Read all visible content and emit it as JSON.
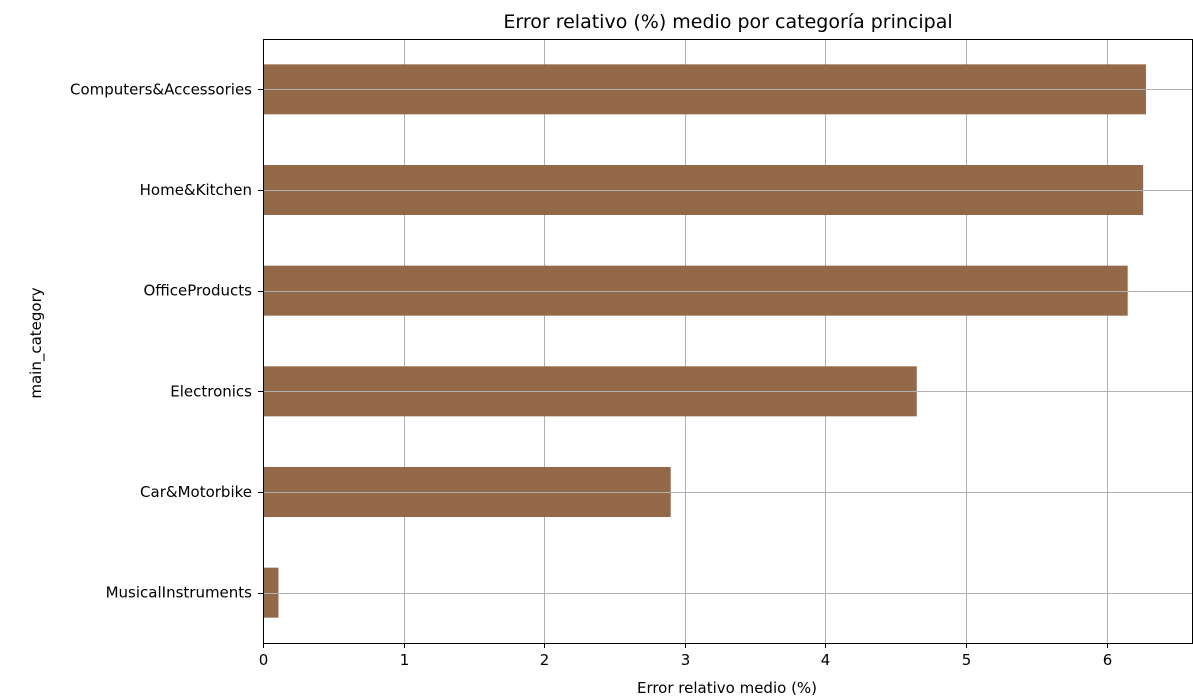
{
  "chart_data": {
    "type": "bar",
    "orientation": "horizontal",
    "title": "Error relativo (%) medio por categoría principal",
    "xlabel": "Error relativo medio (%)",
    "ylabel": "main_category",
    "categories": [
      "Computers&Accessories",
      "Home&Kitchen",
      "OfficeProducts",
      "Electronics",
      "Car&Motorbike",
      "MusicalInstruments"
    ],
    "values": [
      6.28,
      6.26,
      6.15,
      4.65,
      2.9,
      0.11
    ],
    "xlim": [
      0,
      6.59
    ],
    "xticks": [
      "0",
      "1",
      "2",
      "3",
      "4",
      "5",
      "6"
    ],
    "grid": true,
    "bar_color": "#93694a"
  }
}
